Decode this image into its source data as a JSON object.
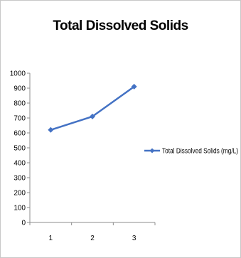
{
  "chart_data": {
    "type": "line",
    "title": "Total Dissolved Solids",
    "xlabel": "",
    "ylabel": "",
    "categories": [
      "1",
      "2",
      "3"
    ],
    "series": [
      {
        "name": "Total Dissolved Solids (mg/L)",
        "values": [
          620,
          710,
          910
        ],
        "color": "#4472c4"
      }
    ],
    "ylim": [
      0,
      1000
    ],
    "yticks": [
      "0",
      "100",
      "200",
      "300",
      "400",
      "500",
      "600",
      "700",
      "800",
      "900",
      "1000"
    ],
    "grid": false,
    "legend_position": "right"
  }
}
